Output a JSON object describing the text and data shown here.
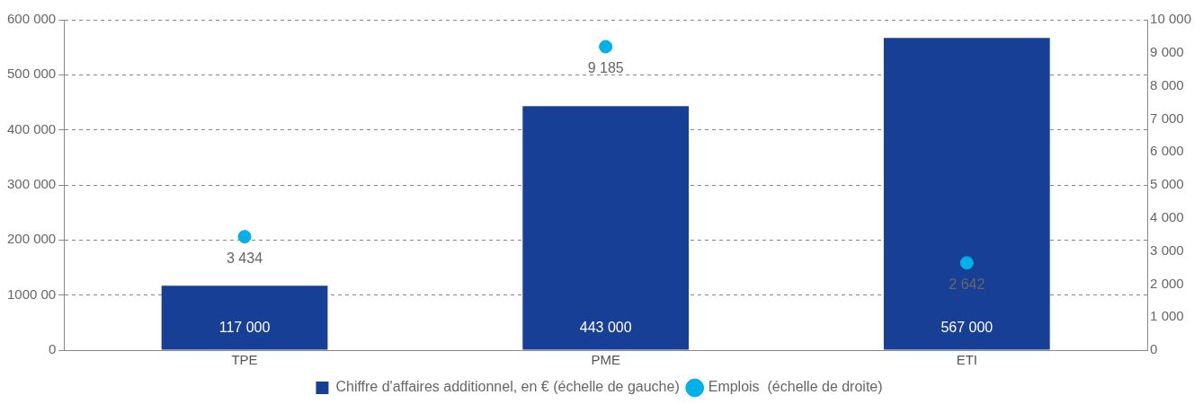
{
  "chart_data": {
    "type": "bar",
    "categories": [
      "TPE",
      "PME",
      "ETI"
    ],
    "series": [
      {
        "name": "Chiffre d'affaires additionnel, en € (échelle de gauche)",
        "color": "#173f96",
        "values": [
          117000,
          443000,
          567000
        ],
        "value_labels": [
          "117 000",
          "443 000",
          "567 000"
        ]
      },
      {
        "name": "Emplois  (échelle de droite)",
        "type": "scatter",
        "axis": "y2",
        "color": "#00b0e8",
        "values": [
          3434,
          9185,
          2642
        ],
        "value_labels": [
          "3 434",
          "9 185",
          "2 642"
        ],
        "x": [
          "TPE",
          "PME",
          "ETI"
        ]
      }
    ],
    "ylim": [
      0,
      600000
    ],
    "yticks": [
      0,
      {
        "value": 100000,
        "label": "1000 00"
      },
      {
        "value": 200000,
        "label": "200 000"
      },
      {
        "value": 300000,
        "label": "300 000"
      },
      {
        "value": 400000,
        "label": "400 000"
      },
      {
        "value": 500000,
        "label": "500 000"
      },
      {
        "value": 600000,
        "label": "600 000"
      }
    ],
    "y2lim": [
      0,
      10000
    ],
    "y2ticks": [
      0,
      {
        "value": 1000,
        "label": "1 000"
      },
      {
        "value": 2000,
        "label": "2 000"
      },
      {
        "value": 3000,
        "label": "3 000"
      },
      {
        "value": 4000,
        "label": "4 000"
      },
      {
        "value": 5000,
        "label": "5 000"
      },
      {
        "value": 6000,
        "label": "6 000"
      },
      {
        "value": 7000,
        "label": "7 000"
      },
      {
        "value": 8000,
        "label": "8 000"
      },
      {
        "value": 9000,
        "label": "9 000"
      },
      {
        "value": 10000,
        "label": "10 000"
      }
    ],
    "grid": "y",
    "legend": "bottom",
    "marker": "circle"
  }
}
